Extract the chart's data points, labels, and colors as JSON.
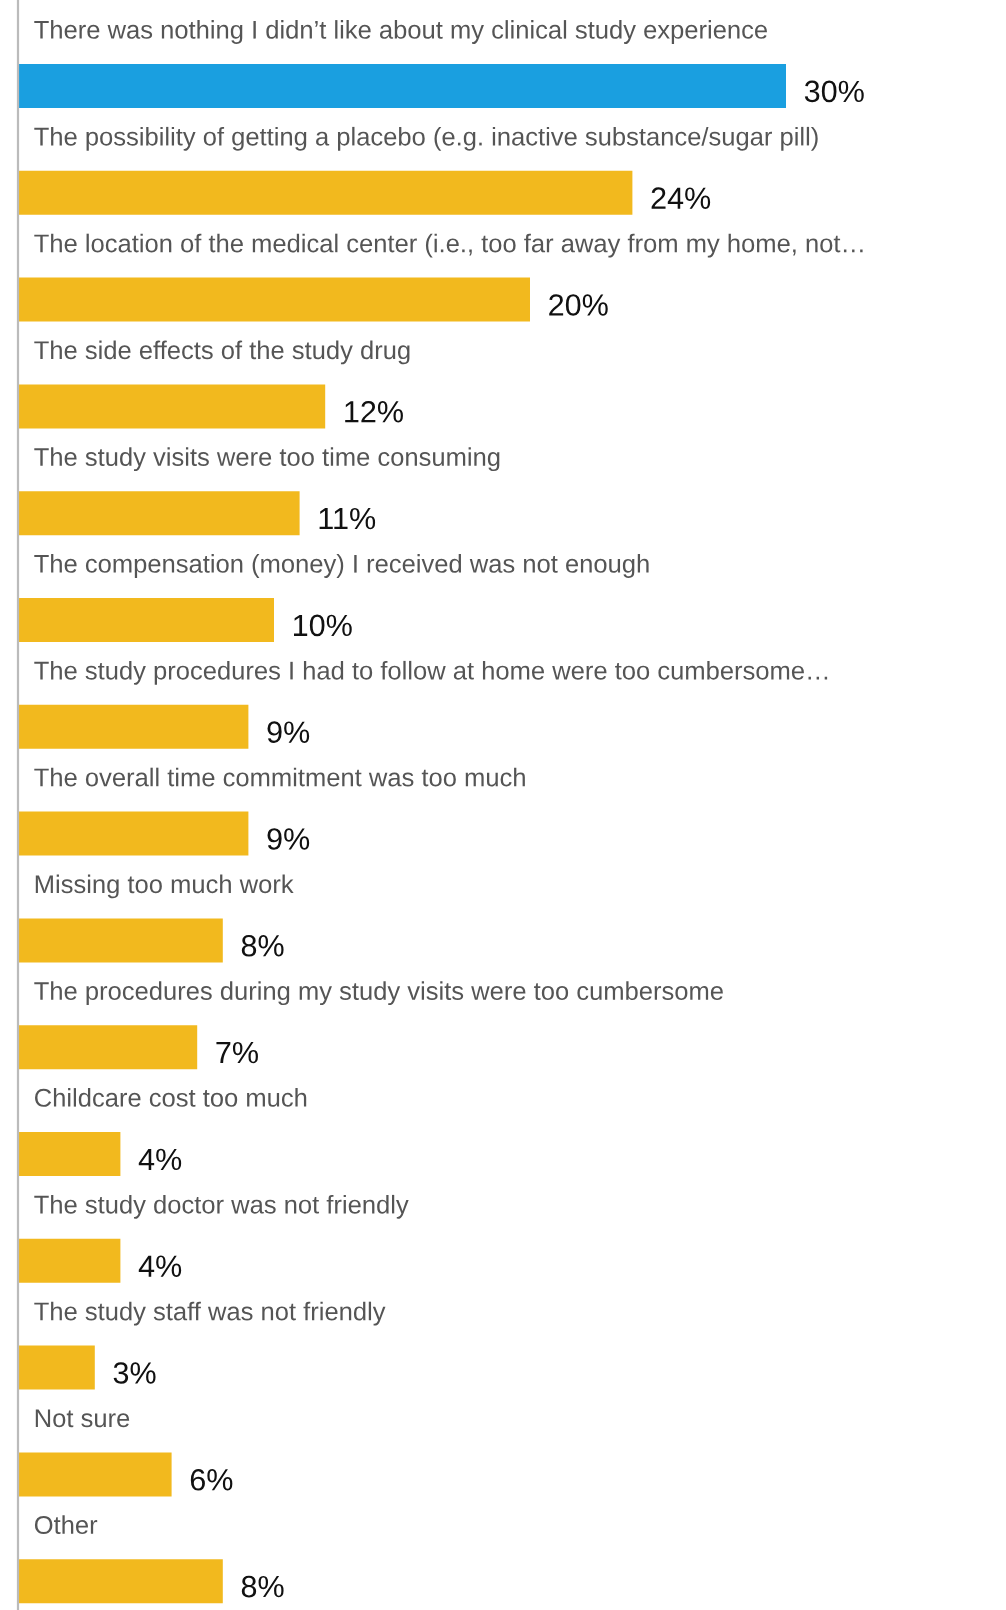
{
  "chart_data": {
    "type": "bar",
    "orientation": "horizontal",
    "categories": [
      "There was nothing I didn’t like about my clinical study experience",
      "The possibility of getting a placebo (e.g. inactive substance/sugar pill)",
      "The location of the medical center (i.e., too far away from my home, not…",
      "The side effects of the study drug",
      "The study visits were too time consuming",
      "The compensation (money) I received was not enough",
      "The study procedures I had to follow at home were too cumbersome…",
      "The overall time commitment was too much",
      "Missing too much work",
      "The procedures during my study visits were too cumbersome",
      "Childcare cost too much",
      "The study doctor was not friendly",
      "The study staff was not friendly",
      "Not sure",
      "Other"
    ],
    "values": [
      30,
      24,
      20,
      12,
      11,
      10,
      9,
      9,
      8,
      7,
      4,
      4,
      3,
      6,
      8
    ],
    "colors": [
      "#1a9fe0",
      "#f2b91e",
      "#f2b91e",
      "#f2b91e",
      "#f2b91e",
      "#f2b91e",
      "#f2b91e",
      "#f2b91e",
      "#f2b91e",
      "#f2b91e",
      "#f2b91e",
      "#f2b91e",
      "#f2b91e",
      "#f2b91e",
      "#f2b91e"
    ],
    "value_labels": [
      "30%",
      "24%",
      "20%",
      "12%",
      "11%",
      "10%",
      "9%",
      "9%",
      "8%",
      "7%",
      "4%",
      "4%",
      "3%",
      "6%",
      "8%"
    ],
    "legend": false
  }
}
